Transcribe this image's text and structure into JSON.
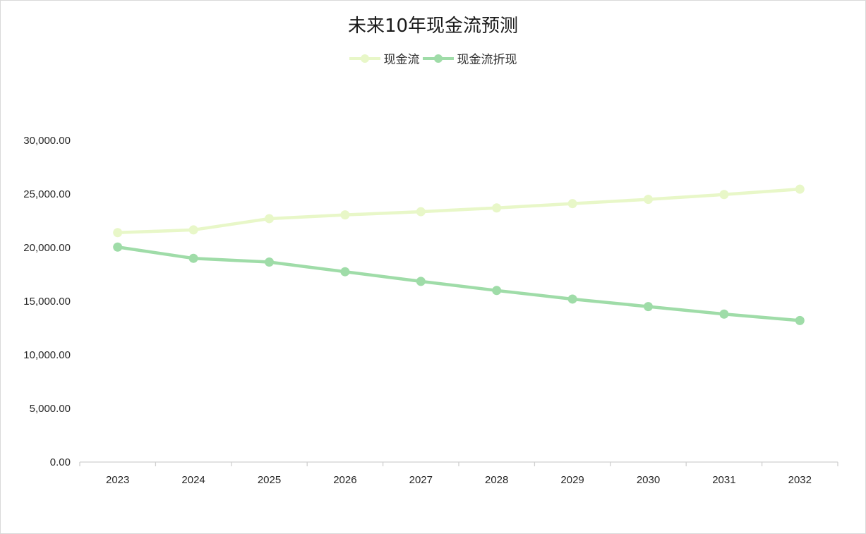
{
  "chart_data": {
    "type": "line",
    "title": "未来10年现金流预测",
    "categories": [
      "2023",
      "2024",
      "2025",
      "2026",
      "2027",
      "2028",
      "2029",
      "2030",
      "2031",
      "2032"
    ],
    "series": [
      {
        "name": "现金流",
        "color": "#e8f7c8",
        "values": [
          21400,
          21650,
          22700,
          23050,
          23350,
          23700,
          24100,
          24500,
          24950,
          25450
        ]
      },
      {
        "name": "现金流折现",
        "color": "#9fdca8",
        "values": [
          20050,
          19000,
          18650,
          17750,
          16850,
          16000,
          15200,
          14500,
          13800,
          13200
        ]
      }
    ],
    "y_ticks": [
      "0.00",
      "5,000.00",
      "10,000.00",
      "15,000.00",
      "20,000.00",
      "25,000.00",
      "30,000.00"
    ],
    "ylim": [
      0,
      30000
    ],
    "legend_position": "top",
    "grid": false
  }
}
